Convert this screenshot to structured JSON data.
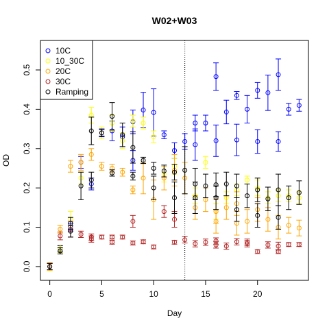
{
  "chart_data": {
    "type": "scatter",
    "title": "W02+W03",
    "xlabel": "Day",
    "ylabel": "OD",
    "xlim": [
      -0.9,
      24.9
    ],
    "ylim": [
      -0.035,
      0.575
    ],
    "x_ticks": [
      0,
      5,
      10,
      15,
      20
    ],
    "y_ticks": [
      0.0,
      0.1,
      0.2,
      0.3,
      0.4,
      0.5
    ],
    "y_tick_labels": [
      "0.0",
      "0.1",
      "0.2",
      "0.3",
      "0.4",
      "0.5"
    ],
    "vline": 13,
    "grid": false,
    "legend_position": "top-left",
    "series": [
      {
        "name": "10C",
        "color": "#0000ff",
        "points": [
          [
            0,
            0.0,
            0.008
          ],
          [
            1,
            0.045,
            0.008
          ],
          [
            2,
            0.1,
            0.01
          ],
          [
            3,
            0.265,
            0.015
          ],
          [
            4,
            0.21,
            0.015
          ],
          [
            5,
            0.34,
            0.008
          ],
          [
            6,
            0.345,
            0.025
          ],
          [
            7,
            0.33,
            0.025
          ],
          [
            8,
            0.27,
            0.025
          ],
          [
            8,
            0.368,
            0.03
          ],
          [
            9,
            0.398,
            0.045
          ],
          [
            10,
            0.392,
            0.06
          ],
          [
            11,
            0.335,
            0.01
          ],
          [
            12,
            0.295,
            0.02
          ],
          [
            13,
            0.318,
            0.02
          ],
          [
            14,
            0.365,
            0.02
          ],
          [
            14,
            0.31,
            0.04
          ],
          [
            15,
            0.365,
            0.02
          ],
          [
            16,
            0.483,
            0.035
          ],
          [
            16,
            0.32,
            0.04
          ],
          [
            17,
            0.393,
            0.03
          ],
          [
            18,
            0.435,
            0.01
          ],
          [
            18,
            0.322,
            0.04
          ],
          [
            19,
            0.4,
            0.035
          ],
          [
            20,
            0.448,
            0.02
          ],
          [
            20,
            0.318,
            0.03
          ],
          [
            21,
            0.442,
            0.045
          ],
          [
            22,
            0.488,
            0.04
          ],
          [
            22,
            0.318,
            0.025
          ],
          [
            23,
            0.4,
            0.015
          ],
          [
            24,
            0.41,
            0.015
          ]
        ]
      },
      {
        "name": "10_30C",
        "color": "#ffff00",
        "points": [
          [
            0,
            0.0,
            0.01
          ],
          [
            1,
            0.045,
            0.01
          ],
          [
            2,
            0.12,
            0.02
          ],
          [
            3,
            0.225,
            0.015
          ],
          [
            4,
            0.385,
            0.02
          ],
          [
            5,
            0.34,
            0.015
          ],
          [
            6,
            0.365,
            0.02
          ],
          [
            7,
            0.32,
            0.02
          ],
          [
            8,
            0.37,
            0.015
          ],
          [
            9,
            0.365,
            0.015
          ],
          [
            10,
            0.33,
            0.015
          ],
          [
            11,
            0.235,
            0.02
          ],
          [
            12,
            0.255,
            0.02
          ],
          [
            14,
            0.18,
            0.02
          ],
          [
            15,
            0.265,
            0.015
          ],
          [
            16,
            0.14,
            0.02
          ],
          [
            17,
            0.175,
            0.015
          ],
          [
            18,
            0.195,
            0.015
          ],
          [
            19,
            0.22,
            0.01
          ],
          [
            20,
            0.2,
            0.02
          ],
          [
            21,
            0.175,
            0.015
          ],
          [
            22,
            0.18,
            0.015
          ],
          [
            23,
            0.18,
            0.015
          ],
          [
            24,
            0.175,
            0.015
          ]
        ]
      },
      {
        "name": "20C",
        "color": "#ffa500",
        "points": [
          [
            0,
            0.0,
            0.01
          ],
          [
            1,
            0.095,
            0.01
          ],
          [
            2,
            0.255,
            0.015
          ],
          [
            3,
            0.265,
            0.02
          ],
          [
            4,
            0.285,
            0.015
          ],
          [
            5,
            0.255,
            0.01
          ],
          [
            6,
            0.25,
            0.01
          ],
          [
            7,
            0.24,
            0.01
          ],
          [
            8,
            0.195,
            0.01
          ],
          [
            9,
            0.225,
            0.04
          ],
          [
            10,
            0.17,
            0.05
          ],
          [
            11,
            0.225,
            0.03
          ],
          [
            12,
            0.245,
            0.04
          ],
          [
            13,
            0.225,
            0.04
          ],
          [
            14,
            0.15,
            0.03
          ],
          [
            15,
            0.17,
            0.03
          ],
          [
            16,
            0.14,
            0.03
          ],
          [
            16,
            0.115,
            0.03
          ],
          [
            17,
            0.15,
            0.03
          ],
          [
            18,
            0.16,
            0.03
          ],
          [
            18,
            0.11,
            0.03
          ],
          [
            19,
            0.115,
            0.03
          ],
          [
            20,
            0.145,
            0.03
          ],
          [
            21,
            0.12,
            0.03
          ],
          [
            22,
            0.1,
            0.03
          ],
          [
            23,
            0.105,
            0.02
          ],
          [
            24,
            0.098,
            0.02
          ]
        ]
      },
      {
        "name": "30C",
        "color": "#b22222",
        "points": [
          [
            0,
            0.0,
            0.008
          ],
          [
            1,
            0.078,
            0.01
          ],
          [
            2,
            0.095,
            0.02
          ],
          [
            3,
            0.082,
            0.008
          ],
          [
            4,
            0.075,
            0.008
          ],
          [
            4,
            0.07,
            0.008
          ],
          [
            5,
            0.075,
            0.005
          ],
          [
            6,
            0.075,
            0.005
          ],
          [
            6,
            0.062,
            0.005
          ],
          [
            7,
            0.075,
            0.005
          ],
          [
            8,
            0.06,
            0.005
          ],
          [
            8,
            0.115,
            0.015
          ],
          [
            9,
            0.063,
            0.005
          ],
          [
            10,
            0.05,
            0.005
          ],
          [
            11,
            0.14,
            0.015
          ],
          [
            12,
            0.062,
            0.005
          ],
          [
            12,
            0.12,
            0.02
          ],
          [
            13,
            0.068,
            0.008
          ],
          [
            14,
            0.058,
            0.008
          ],
          [
            15,
            0.062,
            0.008
          ],
          [
            16,
            0.055,
            0.008
          ],
          [
            16,
            0.065,
            0.008
          ],
          [
            17,
            0.052,
            0.008
          ],
          [
            18,
            0.063,
            0.008
          ],
          [
            19,
            0.062,
            0.008
          ],
          [
            19,
            0.058,
            0.008
          ],
          [
            20,
            0.038,
            0.005
          ],
          [
            21,
            0.055,
            0.008
          ],
          [
            22,
            0.052,
            0.01
          ],
          [
            22,
            0.038,
            0.005
          ],
          [
            23,
            0.056,
            0.005
          ],
          [
            24,
            0.056,
            0.005
          ]
        ]
      },
      {
        "name": "Ramping",
        "color": "#000000",
        "points": [
          [
            0,
            0.0,
            0.008
          ],
          [
            1,
            0.04,
            0.008
          ],
          [
            2,
            0.09,
            0.015
          ],
          [
            2,
            0.11,
            0.015
          ],
          [
            3,
            0.205,
            0.035
          ],
          [
            4,
            0.345,
            0.035
          ],
          [
            4,
            0.22,
            0.02
          ],
          [
            5,
            0.34,
            0.01
          ],
          [
            6,
            0.382,
            0.035
          ],
          [
            6,
            0.238,
            0.008
          ],
          [
            7,
            0.335,
            0.03
          ],
          [
            8,
            0.23,
            0.01
          ],
          [
            8,
            0.303,
            0.04
          ],
          [
            9,
            0.27,
            0.008
          ],
          [
            10,
            0.25,
            0.015
          ],
          [
            10,
            0.2,
            0.03
          ],
          [
            11,
            0.243,
            0.015
          ],
          [
            12,
            0.24,
            0.02
          ],
          [
            12,
            0.175,
            0.04
          ],
          [
            13,
            0.245,
            0.06
          ],
          [
            14,
            0.21,
            0.04
          ],
          [
            14,
            0.175,
            0.04
          ],
          [
            15,
            0.205,
            0.03
          ],
          [
            16,
            0.208,
            0.03
          ],
          [
            16,
            0.175,
            0.03
          ],
          [
            17,
            0.21,
            0.03
          ],
          [
            18,
            0.145,
            0.03
          ],
          [
            18,
            0.205,
            0.03
          ],
          [
            19,
            0.18,
            0.03
          ],
          [
            20,
            0.195,
            0.03
          ],
          [
            20,
            0.13,
            0.03
          ],
          [
            21,
            0.172,
            0.03
          ],
          [
            22,
            0.195,
            0.04
          ],
          [
            22,
            0.125,
            0.03
          ],
          [
            23,
            0.175,
            0.03
          ],
          [
            24,
            0.188,
            0.03
          ]
        ]
      }
    ]
  }
}
